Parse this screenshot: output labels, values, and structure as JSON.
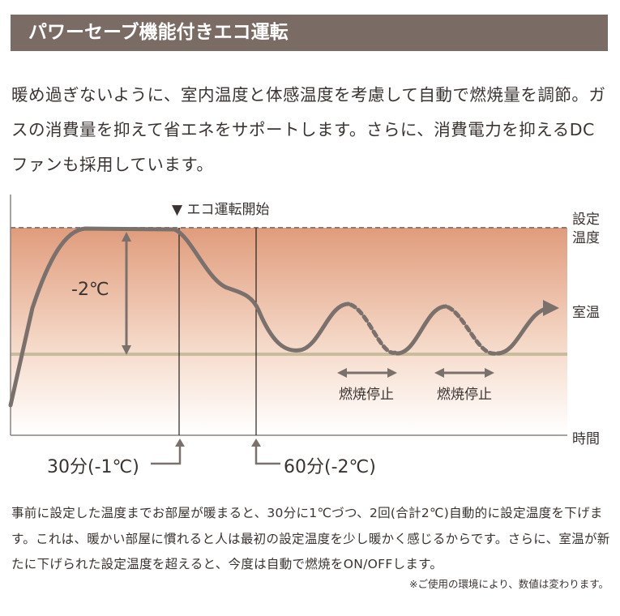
{
  "title": "パワーセーブ機能付きエコ運転",
  "intro": "暖め過ぎないように、室内温度と体感温度を考慮して自動で燃焼量を調節。ガスの消費量を抑えて省エネをサポートします。さらに、消費電力を抑えるDCファンも採用しています。",
  "diagram": {
    "eco_start": "▼ エコ運転開始",
    "set_temp": [
      "設定",
      "温度"
    ],
    "room_temp": "室温",
    "time": "時間",
    "delta": "-2℃",
    "stop_labels": [
      "燃焼停止",
      "燃焼停止"
    ],
    "marker_30": "30分(-1℃)",
    "marker_60": "60分(-2℃)",
    "colors": {
      "curve": "#7a716d",
      "band_top": "#e09c7c",
      "baseline": "#c8bc9c"
    }
  },
  "footer": "事前に設定した温度までお部屋が暖まると、30分に1℃づつ、2回(合計2℃)自動的に設定温度を下げます。これは、暖かい部屋に慣れると人は最初の設定温度を少し暖かく感じるからです。さらに、室温が新たに下げられた設定温度を超えると、今度は自動で燃焼をON/OFFします。",
  "note": "※ご使用の環境により、数値は変わります。"
}
